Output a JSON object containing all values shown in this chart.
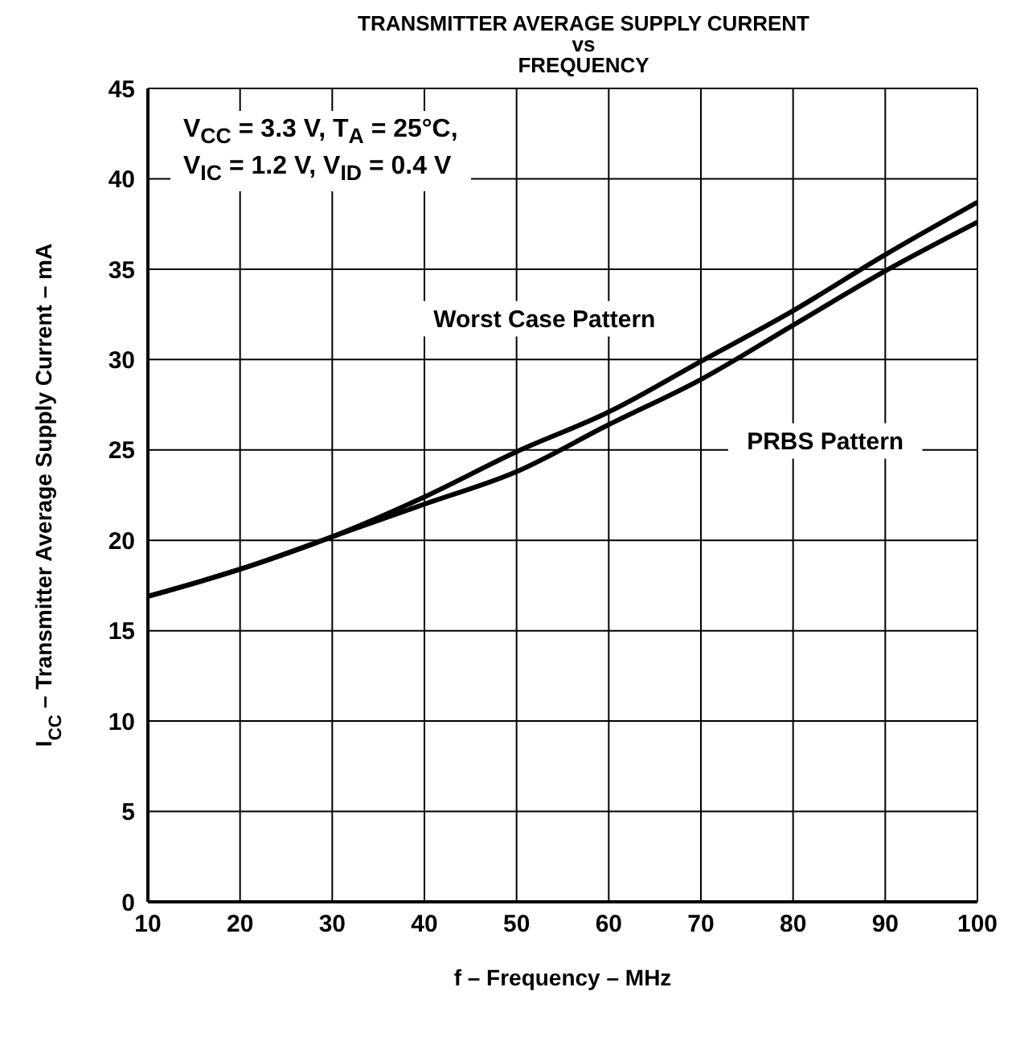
{
  "chart_data": {
    "type": "line",
    "title": "TRANSMITTER AVERAGE SUPPLY CURRENT\nvs\nFREQUENCY",
    "xlabel": "f – Frequency – MHz",
    "ylabel": "I$_{CC}$ – Transmitter Average Supply Current – mA",
    "x": [
      10,
      20,
      30,
      40,
      50,
      60,
      70,
      80,
      90,
      100
    ],
    "series": [
      {
        "name": "Worst Case Pattern",
        "color": "#000000",
        "values": [
          16.9,
          18.4,
          20.2,
          22.4,
          24.9,
          27.1,
          29.9,
          32.7,
          35.8,
          38.7
        ]
      },
      {
        "name": "PRBS Pattern",
        "color": "#000000",
        "values": [
          16.9,
          18.4,
          20.2,
          22.0,
          23.8,
          26.4,
          28.9,
          31.9,
          34.9,
          37.6
        ]
      }
    ],
    "annotations": [
      "V$_{CC}$ = 3.3 V, T$_{A}$ = 25°C,",
      "V$_{IC}$ = 1.2 V, V$_{ID}$ = 0.4 V"
    ],
    "xlim": [
      10,
      100
    ],
    "xticks": [
      10,
      20,
      30,
      40,
      50,
      60,
      70,
      80,
      90,
      100
    ],
    "ylim": [
      0,
      45
    ],
    "yticks": [
      0,
      5,
      10,
      15,
      20,
      25,
      30,
      35,
      40,
      45
    ],
    "grid": true,
    "marker": "none",
    "line_style": "solid"
  }
}
